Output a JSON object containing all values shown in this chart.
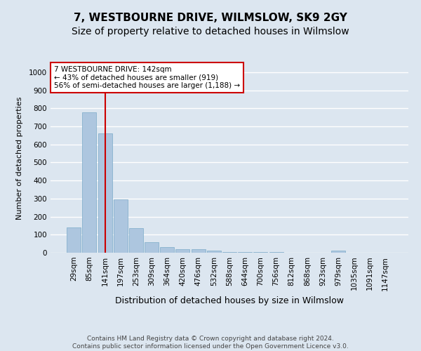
{
  "title": "7, WESTBOURNE DRIVE, WILMSLOW, SK9 2GY",
  "subtitle": "Size of property relative to detached houses in Wilmslow",
  "xlabel": "Distribution of detached houses by size in Wilmslow",
  "ylabel": "Number of detached properties",
  "categories": [
    "29sqm",
    "85sqm",
    "141sqm",
    "197sqm",
    "253sqm",
    "309sqm",
    "364sqm",
    "420sqm",
    "476sqm",
    "532sqm",
    "588sqm",
    "644sqm",
    "700sqm",
    "756sqm",
    "812sqm",
    "868sqm",
    "923sqm",
    "979sqm",
    "1035sqm",
    "1091sqm",
    "1147sqm"
  ],
  "values": [
    140,
    778,
    660,
    295,
    135,
    60,
    30,
    18,
    18,
    13,
    5,
    5,
    5,
    5,
    0,
    0,
    0,
    10,
    0,
    0,
    0
  ],
  "bar_color": "#adc6df",
  "bar_edge_color": "#7aaac8",
  "vline_x": 2,
  "vline_color": "#cc0000",
  "annotation_text": "7 WESTBOURNE DRIVE: 142sqm\n← 43% of detached houses are smaller (919)\n56% of semi-detached houses are larger (1,188) →",
  "annotation_box_color": "#ffffff",
  "annotation_box_edge_color": "#cc0000",
  "ylim": [
    0,
    1050
  ],
  "yticks": [
    0,
    100,
    200,
    300,
    400,
    500,
    600,
    700,
    800,
    900,
    1000
  ],
  "background_color": "#dce6f0",
  "grid_color": "#ffffff",
  "footer_text": "Contains HM Land Registry data © Crown copyright and database right 2024.\nContains public sector information licensed under the Open Government Licence v3.0.",
  "title_fontsize": 11,
  "subtitle_fontsize": 10,
  "xlabel_fontsize": 9,
  "ylabel_fontsize": 8,
  "tick_fontsize": 7.5,
  "annotation_fontsize": 7.5,
  "footer_fontsize": 6.5
}
